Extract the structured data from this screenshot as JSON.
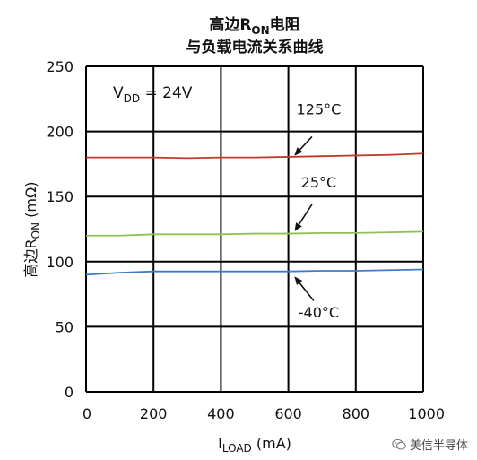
{
  "chart_data": {
    "type": "line",
    "title_lines": [
      {
        "main": "高边R",
        "sub": "ON",
        "rest": "电阻"
      },
      {
        "main": "与负载电流关系曲线",
        "sub": "",
        "rest": ""
      }
    ],
    "ylabel": {
      "main": "高边R",
      "sub": "ON",
      "rest": " (mΩ)"
    },
    "xlabel": {
      "main": "I",
      "sub": "LOAD",
      "rest": " (mA)"
    },
    "xlim": [
      0,
      1000
    ],
    "ylim": [
      0,
      250
    ],
    "xticks": [
      0,
      200,
      400,
      600,
      800,
      1000
    ],
    "yticks": [
      0,
      50,
      100,
      150,
      200,
      250
    ],
    "grid": true,
    "condition": {
      "main": "V",
      "sub": "DD",
      "rest": " = 24V"
    },
    "series": [
      {
        "name": "125°C",
        "color": "#c0392b",
        "x": [
          0,
          100,
          200,
          300,
          400,
          500,
          600,
          700,
          800,
          900,
          1000
        ],
        "y": [
          180,
          180,
          180,
          179.5,
          180,
          180,
          180.5,
          181,
          181.5,
          182,
          183
        ]
      },
      {
        "name": "25°C",
        "color": "#8dc153",
        "x": [
          0,
          100,
          200,
          300,
          400,
          500,
          600,
          700,
          800,
          900,
          1000
        ],
        "y": [
          120,
          120,
          121,
          121,
          121,
          121.5,
          121.5,
          122,
          122,
          122.5,
          123
        ]
      },
      {
        "name": "-40°C",
        "color": "#3d7cc9",
        "x": [
          0,
          100,
          200,
          300,
          400,
          500,
          600,
          700,
          800,
          900,
          1000
        ],
        "y": [
          90,
          91.5,
          92.5,
          92.5,
          92.5,
          92.5,
          92.5,
          93,
          93,
          93.5,
          94
        ]
      }
    ],
    "annotations": [
      {
        "text": "125°C",
        "series": 0,
        "text_at": [
          690,
          213
        ],
        "arrow_from": [
          670,
          196
        ],
        "arrow_to": [
          620,
          182
        ]
      },
      {
        "text": "25°C",
        "series": 1,
        "text_at": [
          690,
          157
        ],
        "arrow_from": [
          670,
          144
        ],
        "arrow_to": [
          620,
          124
        ]
      },
      {
        "text": "-40°C",
        "series": 2,
        "text_at": [
          690,
          57
        ],
        "arrow_from": [
          675,
          70
        ],
        "arrow_to": [
          620,
          88
        ]
      }
    ]
  },
  "watermark": {
    "text": "美信半导体",
    "icon": "wechat-icon"
  }
}
